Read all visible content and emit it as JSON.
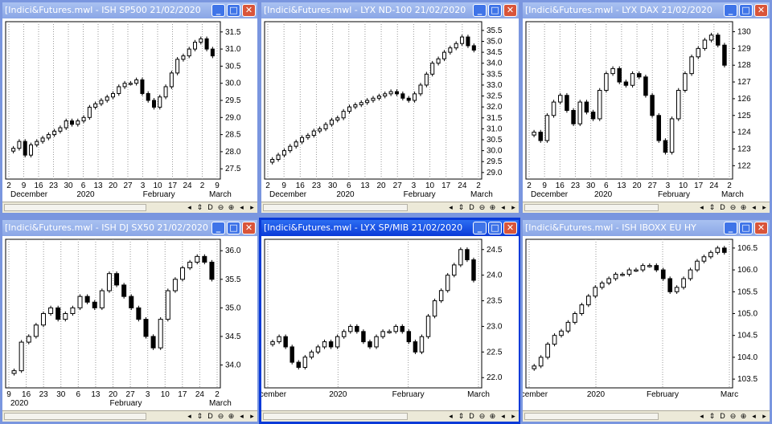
{
  "windows": [
    {
      "id": "w1",
      "title": "[Indici&Futures.mwl - ISH SP500   21/02/2020",
      "active": false,
      "xlabels": [
        "2",
        "9",
        "16",
        "23",
        "30",
        "6",
        "13",
        "20",
        "27",
        "3",
        "10",
        "17",
        "24",
        "2",
        "9"
      ],
      "month_labels": [
        "December",
        "2020",
        "February",
        "March"
      ],
      "yticks": [
        "31.5",
        "31.0",
        "30.5",
        "30.0",
        "29.5",
        "29.0",
        "28.5",
        "28.0",
        "27.5"
      ],
      "chart_data": {
        "type": "candlestick",
        "ylim": [
          27.2,
          31.8
        ],
        "y_tick_values": [
          31.5,
          31.0,
          30.5,
          30.0,
          29.5,
          29.0,
          28.5,
          28.0,
          27.5
        ],
        "closes": [
          28.1,
          28.3,
          27.9,
          28.2,
          28.3,
          28.4,
          28.5,
          28.6,
          28.7,
          28.9,
          28.8,
          28.9,
          29.0,
          29.3,
          29.4,
          29.5,
          29.6,
          29.7,
          29.9,
          30.0,
          30.0,
          30.1,
          29.7,
          29.5,
          29.3,
          29.6,
          29.9,
          30.3,
          30.7,
          30.8,
          31.0,
          31.2,
          31.3,
          31.0,
          30.8
        ]
      }
    },
    {
      "id": "w2",
      "title": "[Indici&Futures.mwl - LYX ND-100   21/02/2020",
      "active": false,
      "xlabels": [
        "2",
        "9",
        "16",
        "23",
        "30",
        "6",
        "13",
        "20",
        "27",
        "3",
        "10",
        "17",
        "24",
        "2"
      ],
      "month_labels": [
        "December",
        "2020",
        "February",
        "March"
      ],
      "yticks": [
        "35.5",
        "35.0",
        "34.5",
        "34.0",
        "33.5",
        "33.0",
        "32.5",
        "32.0",
        "31.5",
        "31.0",
        "30.5",
        "30.0",
        "29.5",
        "29.0"
      ],
      "chart_data": {
        "type": "candlestick",
        "ylim": [
          28.7,
          35.9
        ],
        "y_tick_values": [
          35.5,
          35.0,
          34.5,
          34.0,
          33.5,
          33.0,
          32.5,
          32.0,
          31.5,
          31.0,
          30.5,
          30.0,
          29.5,
          29.0
        ],
        "closes": [
          29.6,
          29.8,
          30.0,
          30.2,
          30.4,
          30.6,
          30.7,
          30.9,
          31.0,
          31.2,
          31.4,
          31.5,
          31.8,
          32.0,
          32.1,
          32.2,
          32.3,
          32.4,
          32.5,
          32.6,
          32.7,
          32.6,
          32.4,
          32.3,
          32.6,
          33.0,
          33.5,
          34.0,
          34.2,
          34.5,
          34.7,
          34.9,
          35.2,
          34.8,
          34.6
        ]
      }
    },
    {
      "id": "w3",
      "title": "[Indici&Futures.mwl - LYX DAX   21/02/2020",
      "active": false,
      "xlabels": [
        "2",
        "9",
        "16",
        "23",
        "30",
        "6",
        "13",
        "20",
        "27",
        "3",
        "10",
        "17",
        "24",
        "2"
      ],
      "month_labels": [
        "December",
        "2020",
        "February",
        "March"
      ],
      "yticks": [
        "130",
        "129",
        "128",
        "127",
        "126",
        "125",
        "124",
        "123",
        "122"
      ],
      "chart_data": {
        "type": "candlestick",
        "ylim": [
          121.2,
          130.6
        ],
        "y_tick_values": [
          130,
          129,
          128,
          127,
          126,
          125,
          124,
          123,
          122
        ],
        "closes": [
          124.0,
          123.5,
          125.0,
          125.8,
          126.2,
          125.3,
          124.5,
          125.8,
          125.2,
          124.8,
          126.5,
          127.5,
          127.8,
          127.0,
          126.8,
          127.5,
          127.3,
          126.2,
          125.0,
          123.5,
          122.8,
          124.8,
          126.5,
          127.5,
          128.5,
          129.0,
          129.5,
          129.8,
          129.2,
          128.0
        ]
      }
    },
    {
      "id": "w4",
      "title": "[Indici&Futures.mwl - ISH DJ SX50   21/02/2020",
      "active": false,
      "xlabels": [
        "9",
        "16",
        "23",
        "30",
        "6",
        "13",
        "20",
        "27",
        "3",
        "10",
        "17",
        "24",
        "2"
      ],
      "month_labels": [
        "2020",
        "February",
        "March"
      ],
      "yticks": [
        "36.0",
        "35.5",
        "35.0",
        "34.5",
        "34.0"
      ],
      "chart_data": {
        "type": "candlestick",
        "ylim": [
          33.6,
          36.2
        ],
        "y_tick_values": [
          36.0,
          35.5,
          35.0,
          34.5,
          34.0
        ],
        "closes": [
          33.9,
          34.4,
          34.5,
          34.7,
          34.9,
          35.0,
          34.8,
          34.9,
          35.0,
          35.2,
          35.1,
          35.0,
          35.3,
          35.6,
          35.4,
          35.2,
          35.0,
          34.8,
          34.5,
          34.3,
          34.8,
          35.3,
          35.5,
          35.7,
          35.8,
          35.9,
          35.8,
          35.5
        ]
      }
    },
    {
      "id": "w5",
      "title": "[Indici&Futures.mwl - LYX SP/MIB   21/02/2020",
      "active": true,
      "xlabels": [
        "December",
        "2020",
        "February",
        "March"
      ],
      "month_labels": [],
      "yticks": [
        "24.5",
        "24.0",
        "23.5",
        "23.0",
        "22.5",
        "22.0"
      ],
      "chart_data": {
        "type": "candlestick",
        "ylim": [
          21.8,
          24.7
        ],
        "y_tick_values": [
          24.5,
          24.0,
          23.5,
          23.0,
          22.5,
          22.0
        ],
        "closes": [
          22.7,
          22.8,
          22.6,
          22.3,
          22.2,
          22.4,
          22.5,
          22.6,
          22.7,
          22.6,
          22.8,
          22.9,
          23.0,
          22.9,
          22.7,
          22.6,
          22.8,
          22.9,
          22.9,
          23.0,
          22.9,
          22.7,
          22.5,
          22.8,
          23.2,
          23.5,
          23.7,
          24.0,
          24.2,
          24.5,
          24.3,
          23.9
        ]
      }
    },
    {
      "id": "w6",
      "title": "[Indici&Futures.mwl - ISH IBOXX EU HY",
      "active": false,
      "xlabels": [
        "December",
        "2020",
        "February",
        "Marc"
      ],
      "month_labels": [],
      "yticks": [
        "106.5",
        "106.0",
        "105.5",
        "105.0",
        "104.5",
        "104.0",
        "103.5"
      ],
      "chart_data": {
        "type": "candlestick",
        "ylim": [
          103.3,
          106.7
        ],
        "y_tick_values": [
          106.5,
          106.0,
          105.5,
          105.0,
          104.5,
          104.0,
          103.5
        ],
        "closes": [
          103.8,
          104.0,
          104.3,
          104.5,
          104.6,
          104.8,
          105.0,
          105.2,
          105.4,
          105.6,
          105.7,
          105.8,
          105.9,
          105.9,
          106.0,
          106.0,
          106.1,
          106.1,
          106.0,
          105.8,
          105.5,
          105.6,
          105.8,
          106.0,
          106.2,
          106.3,
          106.4,
          106.5,
          106.4
        ]
      }
    }
  ],
  "buttons": {
    "minimize": "_",
    "maximize": "□",
    "close": "✕"
  },
  "nav": {
    "left": "◂",
    "sync": "⇕",
    "dayframe": "D",
    "zoom_out": "⊖",
    "zoom_in": "⊕",
    "prev": "◂",
    "next": "▸"
  }
}
